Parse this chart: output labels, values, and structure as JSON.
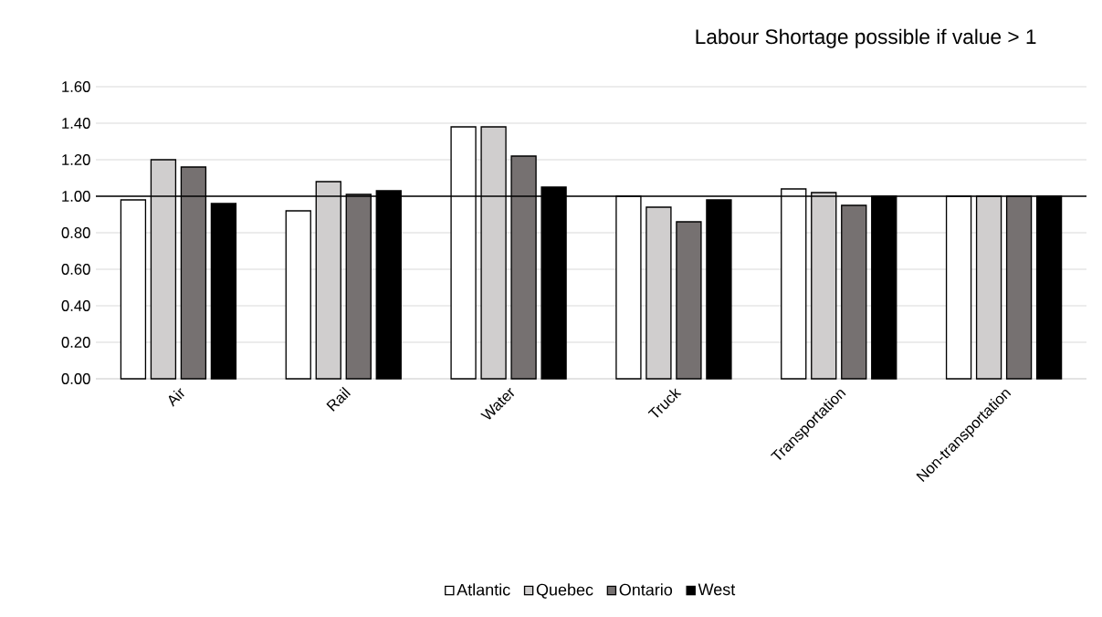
{
  "chart_data": {
    "type": "bar",
    "annotations": [
      "Labour Shortage possible if value > 1"
    ],
    "categories": [
      "Air",
      "Rail",
      "Water",
      "Truck",
      "Transportation",
      "Non-transportation"
    ],
    "series": [
      {
        "name": "Atlantic",
        "color": "#ffffff",
        "values": [
          0.98,
          0.92,
          1.38,
          1.0,
          1.04,
          1.0
        ]
      },
      {
        "name": "Quebec",
        "color": "#d0cece",
        "values": [
          1.2,
          1.08,
          1.38,
          0.94,
          1.02,
          1.0
        ]
      },
      {
        "name": "Ontario",
        "color": "#767171",
        "values": [
          1.16,
          1.01,
          1.22,
          0.86,
          0.95,
          1.0
        ]
      },
      {
        "name": "West",
        "color": "#000000",
        "values": [
          0.96,
          1.03,
          1.05,
          0.98,
          1.0,
          1.0
        ]
      }
    ],
    "ylim": [
      0,
      1.6
    ],
    "yticks": [
      {
        "value": 0,
        "label": "0.00"
      },
      {
        "value": 0.2,
        "label": "0.20"
      },
      {
        "value": 0.4,
        "label": "0.40"
      },
      {
        "value": 0.6,
        "label": "0.60"
      },
      {
        "value": 0.8,
        "label": "0.80"
      },
      {
        "value": 1.0,
        "label": "1.00"
      },
      {
        "value": 1.2,
        "label": "1.20"
      },
      {
        "value": 1.4,
        "label": "1.40"
      },
      {
        "value": 1.6,
        "label": "1.60"
      }
    ],
    "ref_lines": [
      {
        "axis": "y",
        "value": 1.0,
        "color": "#000000"
      }
    ],
    "grid": "y",
    "legend": "bottom"
  }
}
